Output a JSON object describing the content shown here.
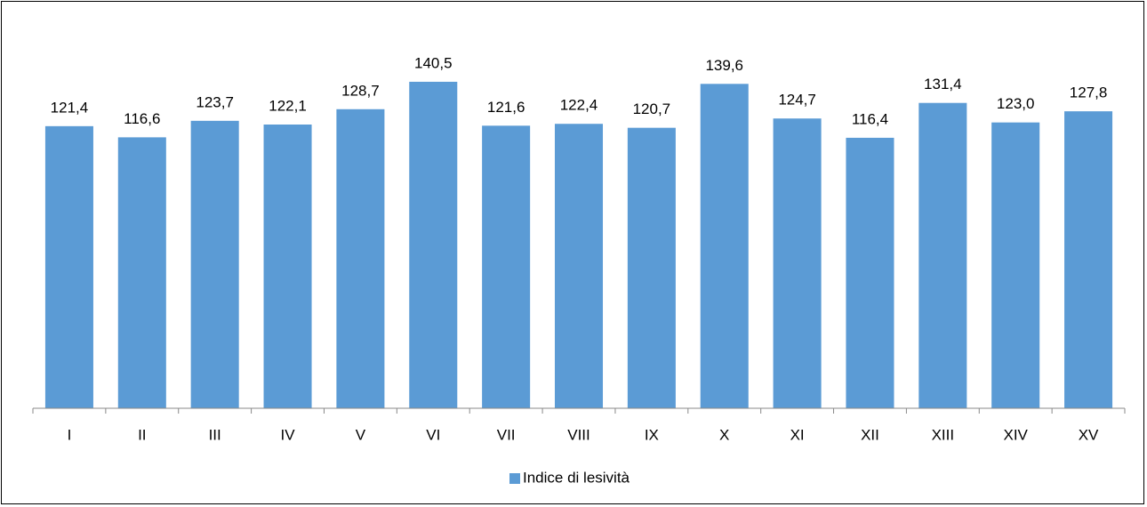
{
  "chart_data": {
    "type": "bar",
    "categories": [
      "I",
      "II",
      "III",
      "IV",
      "V",
      "VI",
      "VII",
      "VIII",
      "IX",
      "X",
      "XI",
      "XII",
      "XIII",
      "XIV",
      "XV"
    ],
    "series": [
      {
        "name": "Indice di lesività",
        "color": "#5b9bd5",
        "values": [
          121.4,
          116.6,
          123.7,
          122.1,
          128.7,
          140.5,
          121.6,
          122.4,
          120.7,
          139.6,
          124.7,
          116.4,
          131.4,
          123.0,
          127.8
        ],
        "value_labels": [
          "121,4",
          "116,6",
          "123,7",
          "122,1",
          "128,7",
          "140,5",
          "121,6",
          "122,4",
          "120,7",
          "139,6",
          "124,7",
          "116,4",
          "131,4",
          "123,0",
          "127,8"
        ]
      }
    ],
    "ylim": [
      0,
      160
    ],
    "legend": "bottom"
  }
}
